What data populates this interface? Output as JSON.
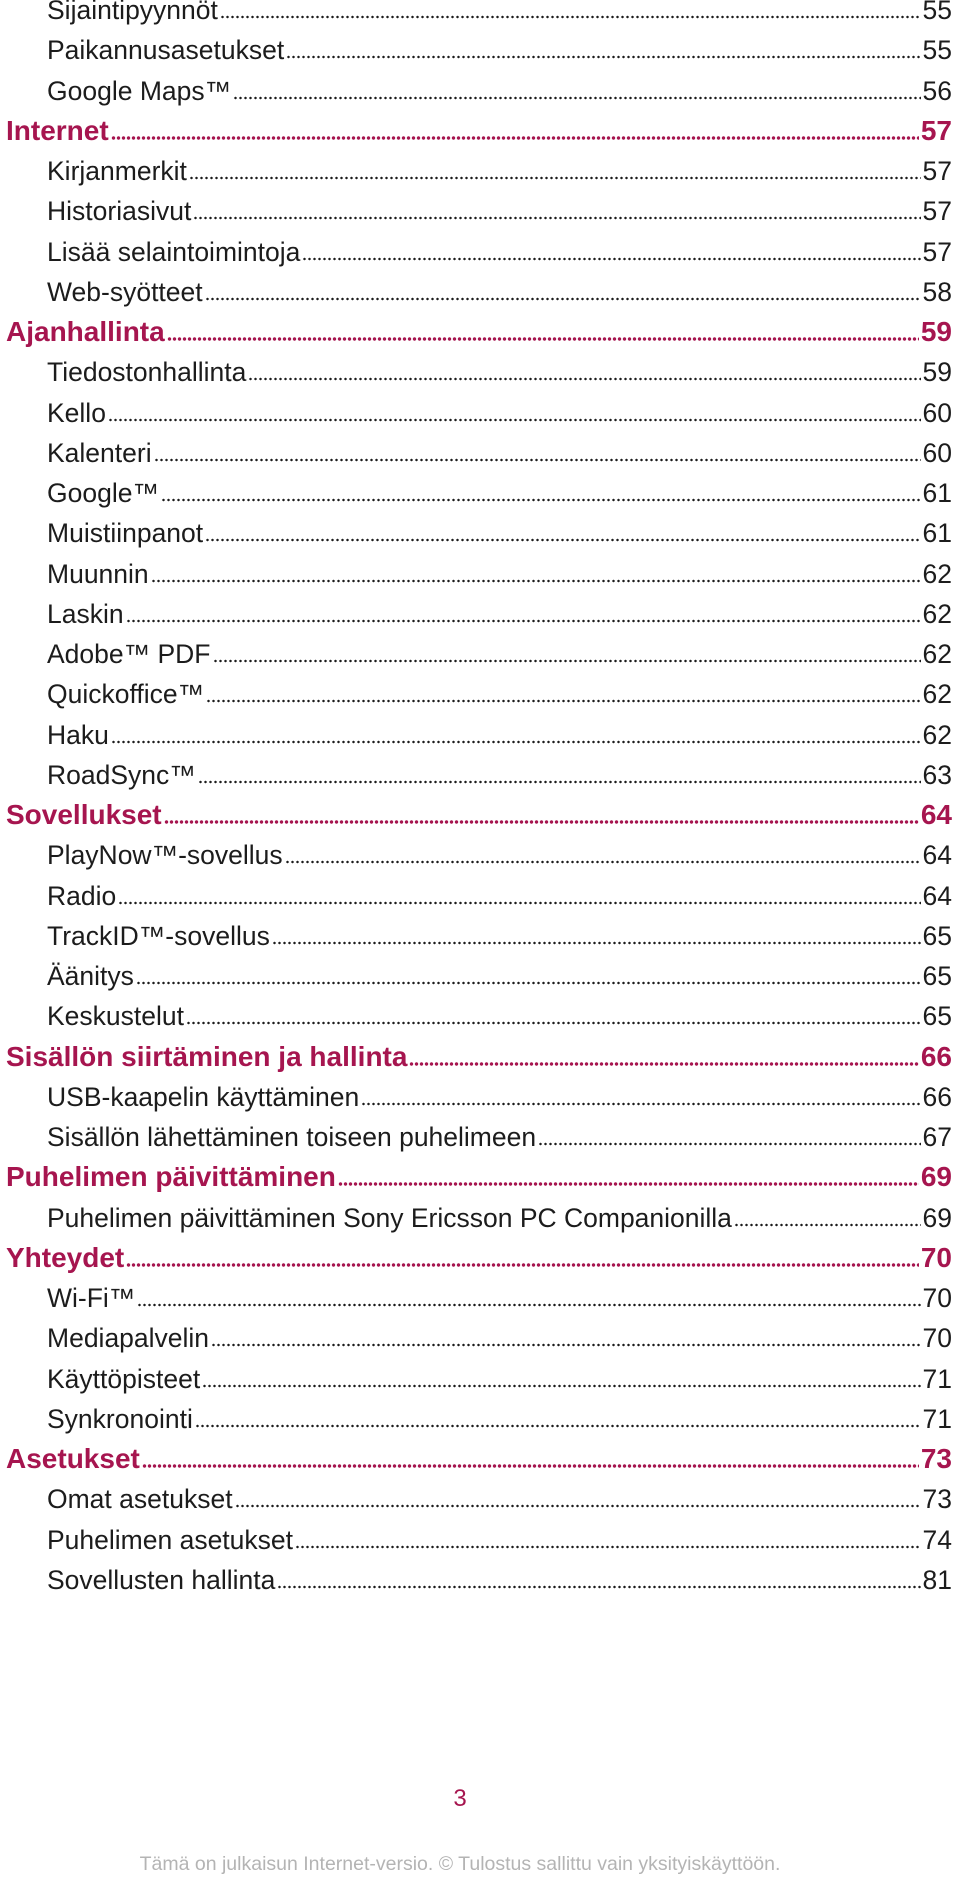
{
  "theme": {
    "accent": "#a6154f",
    "text": "#1c1c1c",
    "footer": "#b4b4b4"
  },
  "toc": [
    {
      "level": "sub",
      "title": "Sijaintipyynnöt",
      "page": "55"
    },
    {
      "level": "sub",
      "title": "Paikannusasetukset",
      "page": "55"
    },
    {
      "level": "sub",
      "title": "Google Maps™",
      "page": "56"
    },
    {
      "level": "sec",
      "title": "Internet",
      "page": "57"
    },
    {
      "level": "sub",
      "title": "Kirjanmerkit",
      "page": "57"
    },
    {
      "level": "sub",
      "title": "Historiasivut",
      "page": "57"
    },
    {
      "level": "sub",
      "title": "Lisää selaintoimintoja",
      "page": "57"
    },
    {
      "level": "sub",
      "title": "Web-syötteet",
      "page": "58"
    },
    {
      "level": "sec",
      "title": "Ajanhallinta",
      "page": "59"
    },
    {
      "level": "sub",
      "title": "Tiedostonhallinta",
      "page": "59"
    },
    {
      "level": "sub",
      "title": "Kello",
      "page": "60"
    },
    {
      "level": "sub",
      "title": "Kalenteri",
      "page": "60"
    },
    {
      "level": "sub",
      "title": "Google™",
      "page": "61"
    },
    {
      "level": "sub",
      "title": "Muistiinpanot",
      "page": "61"
    },
    {
      "level": "sub",
      "title": "Muunnin",
      "page": "62"
    },
    {
      "level": "sub",
      "title": "Laskin",
      "page": "62"
    },
    {
      "level": "sub",
      "title": "Adobe™ PDF",
      "page": "62"
    },
    {
      "level": "sub",
      "title": "Quickoffice™",
      "page": "62"
    },
    {
      "level": "sub",
      "title": "Haku",
      "page": "62"
    },
    {
      "level": "sub",
      "title": "RoadSync™",
      "page": "63"
    },
    {
      "level": "sec",
      "title": "Sovellukset",
      "page": "64"
    },
    {
      "level": "sub",
      "title": "PlayNow™-sovellus",
      "page": "64"
    },
    {
      "level": "sub",
      "title": "Radio",
      "page": "64"
    },
    {
      "level": "sub",
      "title": "TrackID™-sovellus",
      "page": "65"
    },
    {
      "level": "sub",
      "title": "Äänitys",
      "page": "65"
    },
    {
      "level": "sub",
      "title": "Keskustelut",
      "page": "65"
    },
    {
      "level": "sec",
      "title": "Sisällön siirtäminen ja hallinta",
      "page": "66"
    },
    {
      "level": "sub",
      "title": "USB-kaapelin käyttäminen",
      "page": "66"
    },
    {
      "level": "sub",
      "title": "Sisällön lähettäminen toiseen puhelimeen",
      "page": "67"
    },
    {
      "level": "sec",
      "title": "Puhelimen päivittäminen",
      "page": "69"
    },
    {
      "level": "sub",
      "title": "Puhelimen päivittäminen Sony Ericsson PC Companionilla",
      "page": "69"
    },
    {
      "level": "sec",
      "title": "Yhteydet",
      "page": "70"
    },
    {
      "level": "sub",
      "title": "Wi-Fi™",
      "page": "70"
    },
    {
      "level": "sub",
      "title": "Mediapalvelin",
      "page": "70"
    },
    {
      "level": "sub",
      "title": "Käyttöpisteet",
      "page": "71"
    },
    {
      "level": "sub",
      "title": "Synkronointi",
      "page": "71"
    },
    {
      "level": "sec",
      "title": "Asetukset",
      "page": "73"
    },
    {
      "level": "sub",
      "title": "Omat asetukset",
      "page": "73"
    },
    {
      "level": "sub",
      "title": "Puhelimen asetukset",
      "page": "74"
    },
    {
      "level": "sub",
      "title": "Sovellusten hallinta",
      "page": "81"
    }
  ],
  "page_number": "3",
  "footer": "Tämä on julkaisun Internet-versio. © Tulostus sallittu vain yksityiskäyttöön."
}
